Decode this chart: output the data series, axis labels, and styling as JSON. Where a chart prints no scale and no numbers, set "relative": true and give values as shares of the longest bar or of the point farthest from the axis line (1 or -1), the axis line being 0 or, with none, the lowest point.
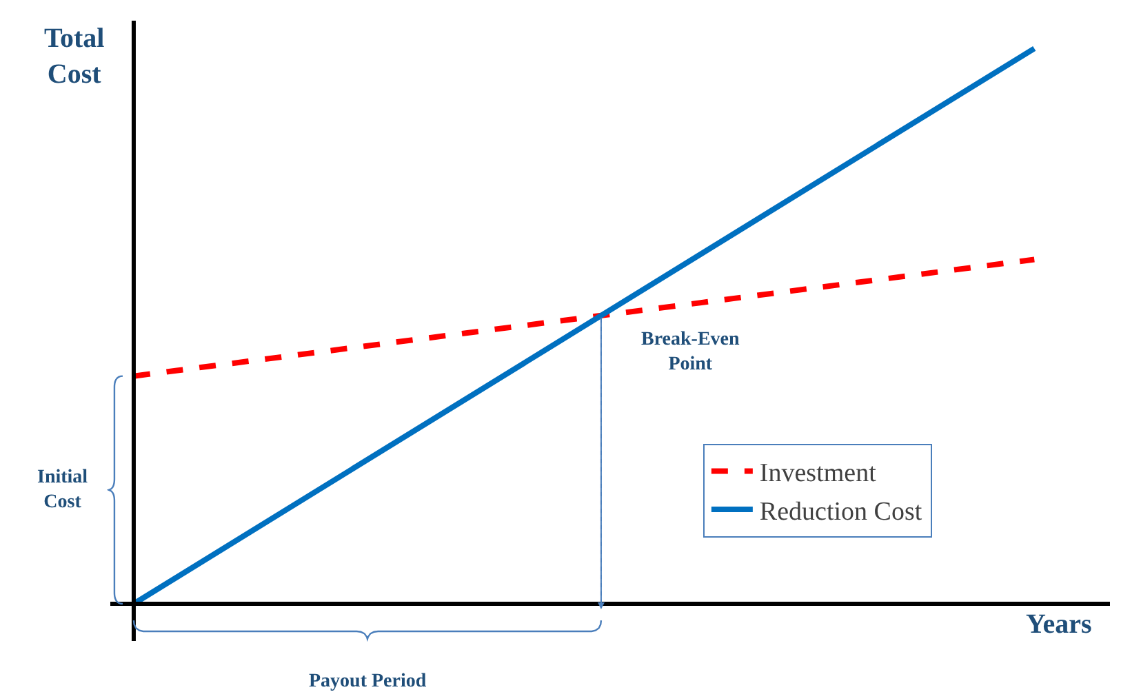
{
  "chart_data": {
    "type": "line",
    "relative": true,
    "xlabel": "Years",
    "ylabel": "Total Cost",
    "categories": [
      null,
      null,
      null
    ],
    "series": [
      {
        "name": "Investment",
        "color": "#ff0000",
        "values": [
          0.41,
          0.515,
          0.62
        ],
        "line_style": "dashed"
      },
      {
        "name": "Reduction Cost",
        "color": "#0070c0",
        "values": [
          0,
          0.5,
          1
        ],
        "line_style": "solid"
      }
    ],
    "annotations": [
      "Break-Even Point",
      "Initial Cost",
      "Payout Period"
    ],
    "legend": "bottom right",
    "marker": "none",
    "grid": false
  }
}
